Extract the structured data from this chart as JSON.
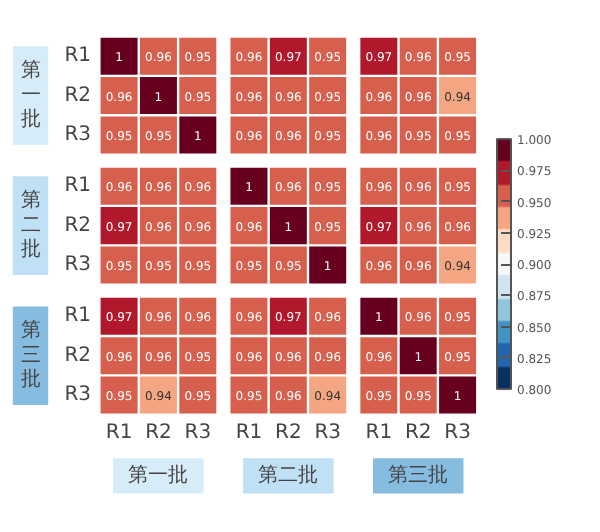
{
  "chart_data": {
    "type": "heatmap",
    "categories": [
      "R1",
      "R2",
      "R3",
      "R1",
      "R2",
      "R3",
      "R1",
      "R2",
      "R3"
    ],
    "y_categories": [
      "R1",
      "R2",
      "R3",
      "R1",
      "R2",
      "R3",
      "R1",
      "R2",
      "R3"
    ],
    "cells": [
      [
        1,
        0.96,
        0.95,
        0.96,
        0.97,
        0.95,
        0.97,
        0.96,
        0.95
      ],
      [
        0.96,
        1,
        0.95,
        0.96,
        0.96,
        0.95,
        0.96,
        0.96,
        0.94
      ],
      [
        0.95,
        0.95,
        1,
        0.96,
        0.96,
        0.95,
        0.96,
        0.95,
        0.95
      ],
      [
        0.96,
        0.96,
        0.96,
        1,
        0.96,
        0.95,
        0.96,
        0.96,
        0.95
      ],
      [
        0.97,
        0.96,
        0.96,
        0.96,
        1,
        0.95,
        0.97,
        0.96,
        0.96
      ],
      [
        0.95,
        0.95,
        0.95,
        0.95,
        0.95,
        1,
        0.96,
        0.96,
        0.94
      ],
      [
        0.97,
        0.96,
        0.96,
        0.96,
        0.97,
        0.96,
        1,
        0.96,
        0.95
      ],
      [
        0.96,
        0.96,
        0.95,
        0.96,
        0.96,
        0.96,
        0.96,
        1,
        0.95
      ],
      [
        0.95,
        0.94,
        0.95,
        0.95,
        0.96,
        0.94,
        0.95,
        0.95,
        1
      ]
    ],
    "clim": [
      0.8,
      1.0
    ],
    "cticks": [
      {
        "value": 0.8,
        "label": "0.800"
      },
      {
        "value": 0.825,
        "label": "0.825"
      },
      {
        "value": 0.85,
        "label": "0.850"
      },
      {
        "value": 0.875,
        "label": "0.875"
      },
      {
        "value": 0.9,
        "label": "0.900"
      },
      {
        "value": 0.925,
        "label": "0.925"
      },
      {
        "value": 0.95,
        "label": "0.950"
      },
      {
        "value": 0.975,
        "label": "0.975"
      },
      {
        "value": 1.0,
        "label": "1.000"
      }
    ],
    "annotations": [
      "第一批",
      "第二批",
      "第三批",
      "第一批",
      "第二批",
      "第三批"
    ],
    "data_labels": true
  }
}
